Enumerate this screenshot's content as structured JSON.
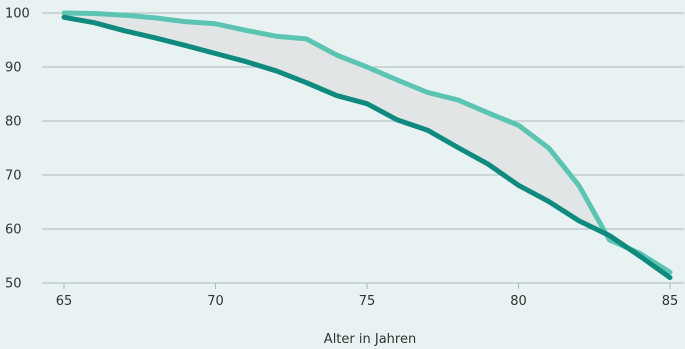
{
  "chart_data": {
    "type": "line",
    "title": "",
    "xlabel": "Alter in Jahren",
    "ylabel": "",
    "xlim": [
      65,
      85
    ],
    "ylim": [
      50,
      100
    ],
    "xticks": [
      65,
      70,
      75,
      80,
      85
    ],
    "yticks": [
      50,
      60,
      70,
      80,
      90,
      100
    ],
    "grid": "horizontal",
    "shaded_band_between_series": true,
    "x": [
      65,
      66,
      67,
      68,
      69,
      70,
      71,
      72,
      73,
      74,
      75,
      76,
      77,
      78,
      79,
      80,
      81,
      82,
      83,
      84,
      85
    ],
    "series": [
      {
        "color": "#5cc4b2",
        "values": [
          100,
          99.9,
          99.6,
          99.1,
          98.4,
          98.0,
          96.8,
          95.7,
          95.2,
          92.2,
          90.0,
          87.6,
          85.3,
          83.9,
          81.5,
          79.2,
          75.0,
          68.0,
          58.0,
          55.5,
          52.0
        ]
      },
      {
        "color": "#0f8a7e",
        "values": [
          99.2,
          98.2,
          96.7,
          95.4,
          94.0,
          92.5,
          91.0,
          89.3,
          87.1,
          84.7,
          83.2,
          80.2,
          78.3,
          75.1,
          72.0,
          68.1,
          65.1,
          61.5,
          58.8,
          55.0,
          51.0
        ]
      }
    ],
    "colors": {
      "grid": "#9aa8a8",
      "band": "#e2e5e5",
      "background": "#e8f2f2"
    }
  }
}
